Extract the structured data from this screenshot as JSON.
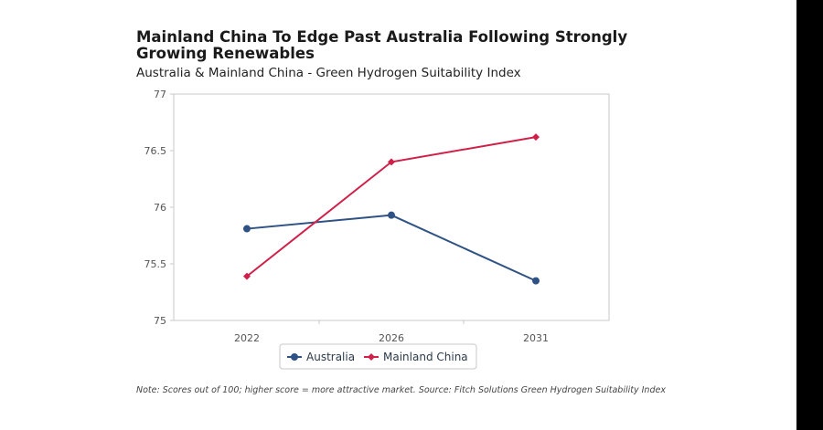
{
  "chart_data": {
    "type": "line",
    "title": "Mainland China To Edge Past Australia Following Strongly Growing Renewables",
    "subtitle": "Australia & Mainland China - Green Hydrogen Suitability Index",
    "categories": [
      "2022",
      "2026",
      "2031"
    ],
    "ylim": [
      75,
      77
    ],
    "yticks": [
      "75",
      "75.5",
      "76",
      "76.5",
      "77"
    ],
    "ytick_values": [
      75,
      75.5,
      76,
      76.5,
      77
    ],
    "grid": false,
    "legend_position": "bottom-center",
    "series": [
      {
        "name": "Australia",
        "values": [
          75.81,
          75.93,
          75.35
        ],
        "color": "#2e5283",
        "marker": "circle"
      },
      {
        "name": "Mainland China",
        "values": [
          75.39,
          76.4,
          76.62
        ],
        "color": "#d0204a",
        "marker": "diamond"
      }
    ],
    "note": "Note: Scores out of 100; higher score = more attractive market. Source: Fitch Solutions Green Hydrogen Suitability Index"
  }
}
